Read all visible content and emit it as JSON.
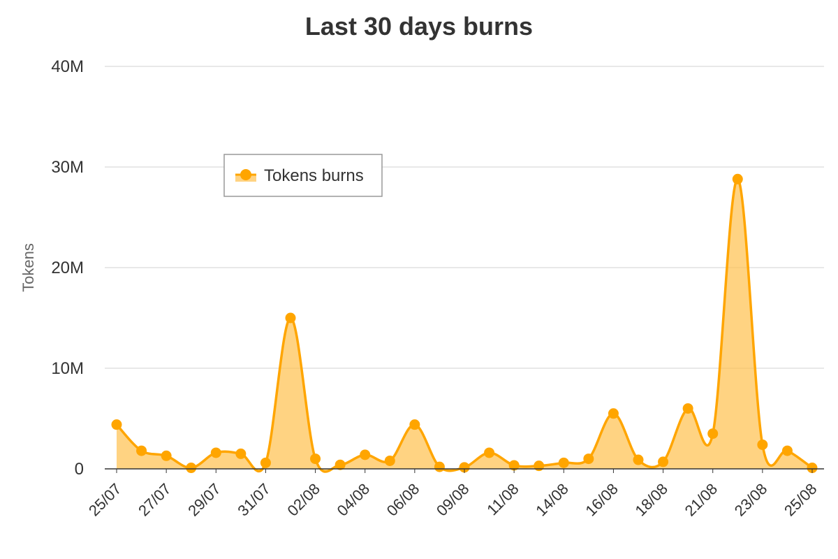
{
  "chart_data": {
    "type": "area",
    "title": "Last 30 days burns",
    "ylabel": "Tokens",
    "xlabel": "",
    "ylim": [
      0,
      40000000
    ],
    "y_ticks": [
      {
        "value": 0,
        "label": "0"
      },
      {
        "value": 10000000,
        "label": "10M"
      },
      {
        "value": 20000000,
        "label": "20M"
      },
      {
        "value": 30000000,
        "label": "30M"
      },
      {
        "value": 40000000,
        "label": "40M"
      }
    ],
    "x_tick_labels": [
      "25/07",
      "27/07",
      "29/07",
      "31/07",
      "02/08",
      "04/08",
      "06/08",
      "09/08",
      "11/08",
      "14/08",
      "16/08",
      "18/08",
      "21/08",
      "23/08",
      "25/08"
    ],
    "legend": {
      "position": "top-left inside plot"
    },
    "grid": true,
    "series": [
      {
        "name": "Tokens burns",
        "color": "#FFA500",
        "fill": "#FFC04D",
        "values": [
          4400000,
          1800000,
          1300000,
          100000,
          1600000,
          1500000,
          600000,
          15000000,
          1000000,
          400000,
          1400000,
          800000,
          4400000,
          200000,
          150000,
          1600000,
          350000,
          300000,
          600000,
          1000000,
          5500000,
          900000,
          700000,
          6000000,
          3500000,
          28800000,
          2400000,
          1800000,
          100000
        ]
      }
    ]
  }
}
